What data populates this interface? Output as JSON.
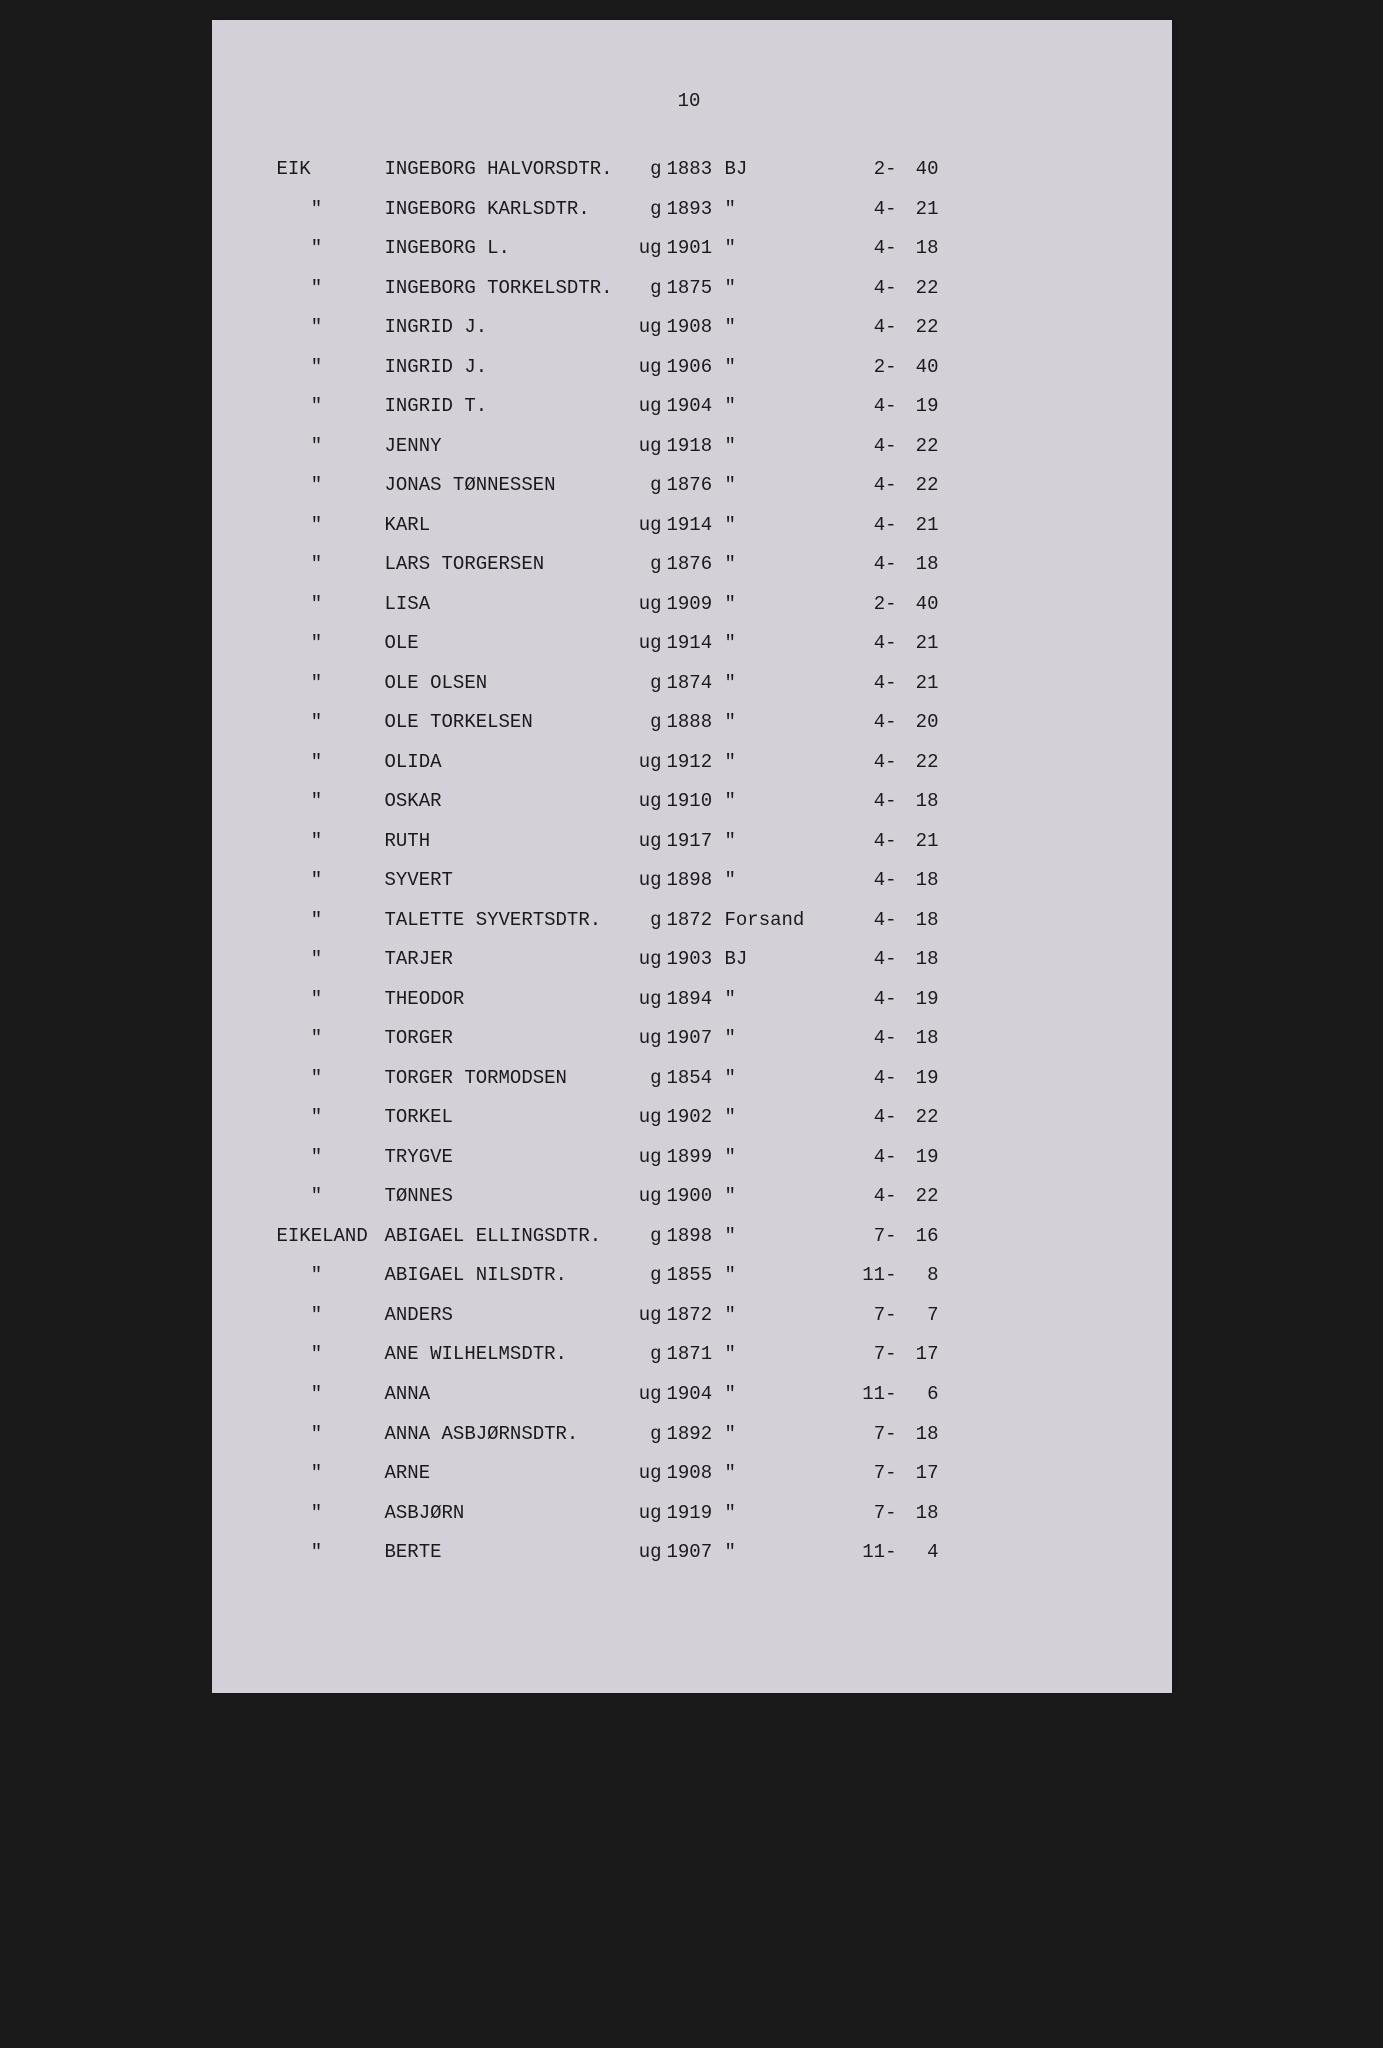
{
  "page_number": "10",
  "rows": [
    {
      "place": "EIK",
      "name": "INGEBORG HALVORSDTR.",
      "status": "g",
      "year": "1883",
      "origin": "BJ",
      "ref1": "2-",
      "ref2": "40"
    },
    {
      "place": "\"",
      "name": "INGEBORG KARLSDTR.",
      "status": "g",
      "year": "1893",
      "origin": "\"",
      "ref1": "4-",
      "ref2": "21"
    },
    {
      "place": "\"",
      "name": "INGEBORG L.",
      "status": "ug",
      "year": "1901",
      "origin": "\"",
      "ref1": "4-",
      "ref2": "18"
    },
    {
      "place": "\"",
      "name": "INGEBORG TORKELSDTR.",
      "status": "g",
      "year": "1875",
      "origin": "\"",
      "ref1": "4-",
      "ref2": "22"
    },
    {
      "place": "\"",
      "name": "INGRID J.",
      "status": "ug",
      "year": "1908",
      "origin": "\"",
      "ref1": "4-",
      "ref2": "22"
    },
    {
      "place": "\"",
      "name": "INGRID J.",
      "status": "ug",
      "year": "1906",
      "origin": "\"",
      "ref1": "2-",
      "ref2": "40"
    },
    {
      "place": "\"",
      "name": "INGRID T.",
      "status": "ug",
      "year": "1904",
      "origin": "\"",
      "ref1": "4-",
      "ref2": "19"
    },
    {
      "place": "\"",
      "name": "JENNY",
      "status": "ug",
      "year": "1918",
      "origin": "\"",
      "ref1": "4-",
      "ref2": "22"
    },
    {
      "place": "\"",
      "name": "JONAS TØNNESSEN",
      "status": "g",
      "year": "1876",
      "origin": "\"",
      "ref1": "4-",
      "ref2": "22"
    },
    {
      "place": "\"",
      "name": "KARL",
      "status": "ug",
      "year": "1914",
      "origin": "\"",
      "ref1": "4-",
      "ref2": "21"
    },
    {
      "place": "\"",
      "name": "LARS TORGERSEN",
      "status": "g",
      "year": "1876",
      "origin": "\"",
      "ref1": "4-",
      "ref2": "18"
    },
    {
      "place": "\"",
      "name": "LISA",
      "status": "ug",
      "year": "1909",
      "origin": "\"",
      "ref1": "2-",
      "ref2": "40"
    },
    {
      "place": "\"",
      "name": "OLE",
      "status": "ug",
      "year": "1914",
      "origin": "\"",
      "ref1": "4-",
      "ref2": "21"
    },
    {
      "place": "\"",
      "name": "OLE OLSEN",
      "status": "g",
      "year": "1874",
      "origin": "\"",
      "ref1": "4-",
      "ref2": "21"
    },
    {
      "place": "\"",
      "name": "OLE TORKELSEN",
      "status": "g",
      "year": "1888",
      "origin": "\"",
      "ref1": "4-",
      "ref2": "20"
    },
    {
      "place": "\"",
      "name": "OLIDA",
      "status": "ug",
      "year": "1912",
      "origin": "\"",
      "ref1": "4-",
      "ref2": "22"
    },
    {
      "place": "\"",
      "name": "OSKAR",
      "status": "ug",
      "year": "1910",
      "origin": "\"",
      "ref1": "4-",
      "ref2": "18"
    },
    {
      "place": "\"",
      "name": "RUTH",
      "status": "ug",
      "year": "1917",
      "origin": "\"",
      "ref1": "4-",
      "ref2": "21"
    },
    {
      "place": "\"",
      "name": "SYVERT",
      "status": "ug",
      "year": "1898",
      "origin": "\"",
      "ref1": "4-",
      "ref2": "18"
    },
    {
      "place": "\"",
      "name": "TALETTE SYVERTSDTR.",
      "status": "g",
      "year": "1872",
      "origin": "Forsand",
      "ref1": "4-",
      "ref2": "18"
    },
    {
      "place": "\"",
      "name": "TARJER",
      "status": "ug",
      "year": "1903",
      "origin": "BJ",
      "ref1": "4-",
      "ref2": "18"
    },
    {
      "place": "\"",
      "name": "THEODOR",
      "status": "ug",
      "year": "1894",
      "origin": "\"",
      "ref1": "4-",
      "ref2": "19"
    },
    {
      "place": "\"",
      "name": "TORGER",
      "status": "ug",
      "year": "1907",
      "origin": "\"",
      "ref1": "4-",
      "ref2": "18"
    },
    {
      "place": "\"",
      "name": "TORGER TORMODSEN",
      "status": "g",
      "year": "1854",
      "origin": "\"",
      "ref1": "4-",
      "ref2": "19"
    },
    {
      "place": "\"",
      "name": "TORKEL",
      "status": "ug",
      "year": "1902",
      "origin": "\"",
      "ref1": "4-",
      "ref2": "22"
    },
    {
      "place": "\"",
      "name": "TRYGVE",
      "status": "ug",
      "year": "1899",
      "origin": "\"",
      "ref1": "4-",
      "ref2": "19"
    },
    {
      "place": "\"",
      "name": "TØNNES",
      "status": "ug",
      "year": "1900",
      "origin": "\"",
      "ref1": "4-",
      "ref2": "22"
    },
    {
      "place": "EIKELAND",
      "name": "ABIGAEL ELLINGSDTR.",
      "status": "g",
      "year": "1898",
      "origin": "\"",
      "ref1": "7-",
      "ref2": "16"
    },
    {
      "place": "\"",
      "name": "ABIGAEL NILSDTR.",
      "status": "g",
      "year": "1855",
      "origin": "\"",
      "ref1": "11-",
      "ref2": "8"
    },
    {
      "place": "\"",
      "name": "ANDERS",
      "status": "ug",
      "year": "1872",
      "origin": "\"",
      "ref1": "7-",
      "ref2": "7"
    },
    {
      "place": "\"",
      "name": "ANE WILHELMSDTR.",
      "status": "g",
      "year": "1871",
      "origin": "\"",
      "ref1": "7-",
      "ref2": "17"
    },
    {
      "place": "\"",
      "name": "ANNA",
      "status": "ug",
      "year": "1904",
      "origin": "\"",
      "ref1": "11-",
      "ref2": "6"
    },
    {
      "place": "\"",
      "name": "ANNA ASBJØRNSDTR.",
      "status": "g",
      "year": "1892",
      "origin": "\"",
      "ref1": "7-",
      "ref2": "18"
    },
    {
      "place": "\"",
      "name": "ARNE",
      "status": "ug",
      "year": "1908",
      "origin": "\"",
      "ref1": "7-",
      "ref2": "17"
    },
    {
      "place": "\"",
      "name": "ASBJØRN",
      "status": "ug",
      "year": "1919",
      "origin": "\"",
      "ref1": "7-",
      "ref2": "18"
    },
    {
      "place": "\"",
      "name": "BERTE",
      "status": "ug",
      "year": "1907",
      "origin": "\"",
      "ref1": "11-",
      "ref2": "4"
    }
  ]
}
